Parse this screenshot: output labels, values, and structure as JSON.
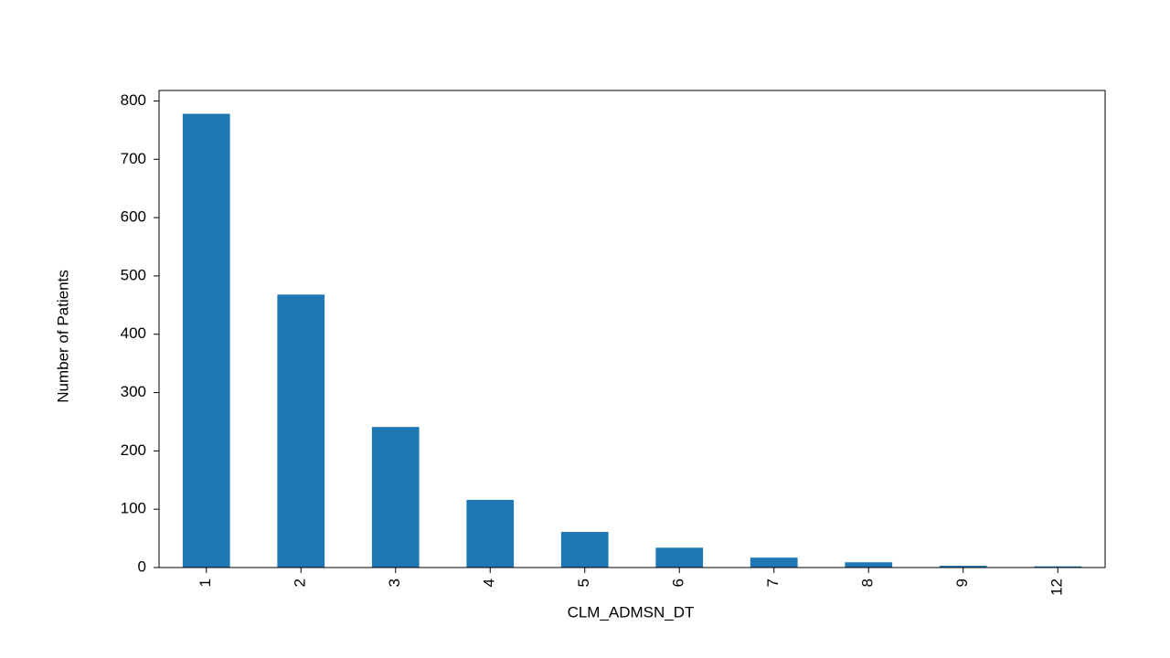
{
  "chart_data": {
    "type": "bar",
    "x_label": "CLM_ADMSN_DT",
    "y_label": "Number of Patients",
    "categories": [
      "1",
      "2",
      "3",
      "4",
      "5",
      "6",
      "7",
      "8",
      "9",
      "12"
    ],
    "values": [
      778,
      468,
      241,
      116,
      61,
      34,
      17,
      9,
      3,
      2
    ],
    "color": "#1f77b4",
    "ylim": [
      0,
      818
    ],
    "yticks": [
      0,
      100,
      200,
      300,
      400,
      500,
      600,
      700,
      800
    ],
    "grid": false
  }
}
